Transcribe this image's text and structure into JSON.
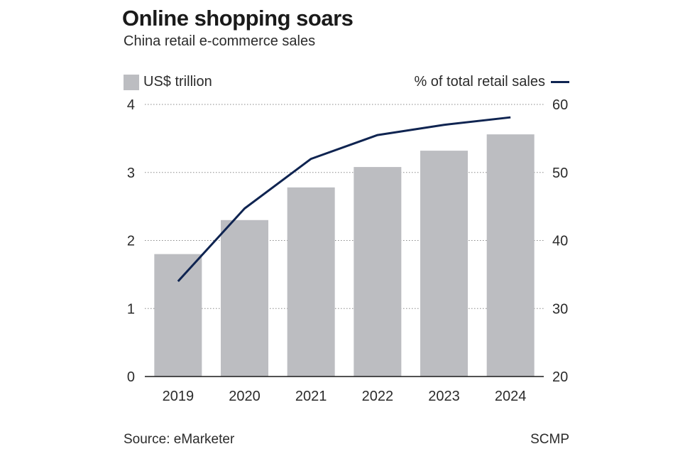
{
  "header": {
    "title": "Online shopping soars",
    "subtitle": "China retail e-commerce sales"
  },
  "legend": {
    "bars_label": "US$ trillion",
    "line_label": "% of total retail sales"
  },
  "footer": {
    "source": "Source: eMarketer",
    "credit": "SCMP"
  },
  "colors": {
    "bar": "#bcbdc1",
    "line": "#0f2451",
    "grid": "#8a8a8a"
  },
  "chart_data": {
    "type": "bar",
    "title": "Online shopping soars",
    "subtitle": "China retail e-commerce sales",
    "categories": [
      "2019",
      "2020",
      "2021",
      "2022",
      "2023",
      "2024"
    ],
    "series": [
      {
        "name": "US$ trillion",
        "type": "bar",
        "axis": "left",
        "values": [
          1.8,
          2.3,
          2.78,
          3.08,
          3.32,
          3.56
        ]
      },
      {
        "name": "% of total retail sales",
        "type": "line",
        "axis": "right",
        "values": [
          34.0,
          44.7,
          52.0,
          55.5,
          57.0,
          58.1
        ]
      }
    ],
    "y_left": {
      "ylim": [
        0,
        4
      ],
      "ticks": [
        "0",
        "1",
        "2",
        "3",
        "4"
      ]
    },
    "y_right": {
      "ylim": [
        20,
        60
      ],
      "ticks": [
        "20",
        "30",
        "40",
        "50",
        "60"
      ]
    },
    "grid": true,
    "legend": "top"
  }
}
